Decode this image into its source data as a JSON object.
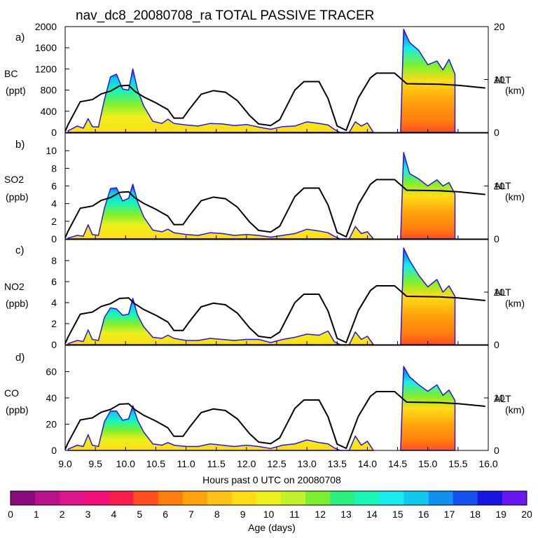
{
  "chart_data": {
    "type": "area",
    "title": "nav_dc8_20080708_ra TOTAL PASSIVE TRACER",
    "xlabel": "Hours past 0 UTC on 20080708",
    "xlim": [
      9.0,
      16.0
    ],
    "x_ticks": [
      "9.0",
      "9.5",
      "10.0",
      "10.5",
      "11.0",
      "11.5",
      "12.0",
      "12.5",
      "13.0",
      "13.5",
      "14.0",
      "14.5",
      "15.0",
      "15.5",
      "16.0"
    ],
    "right_axis": {
      "label": "ALT",
      "unit": "(km)",
      "ylim": [
        0,
        20
      ],
      "ticks": [
        "0",
        "10",
        "20"
      ]
    },
    "altitude_km": [
      [
        9.0,
        0.2
      ],
      [
        9.05,
        1.5
      ],
      [
        9.25,
        5.8
      ],
      [
        9.45,
        6.2
      ],
      [
        9.6,
        7.3
      ],
      [
        9.75,
        7.8
      ],
      [
        9.9,
        8.8
      ],
      [
        10.05,
        8.9
      ],
      [
        10.15,
        7.8
      ],
      [
        10.3,
        6.7
      ],
      [
        10.5,
        5.6
      ],
      [
        10.7,
        4.3
      ],
      [
        10.8,
        2.7
      ],
      [
        10.95,
        2.7
      ],
      [
        11.05,
        4.3
      ],
      [
        11.25,
        7.2
      ],
      [
        11.45,
        7.9
      ],
      [
        11.65,
        7.6
      ],
      [
        11.85,
        6.0
      ],
      [
        12.05,
        3.2
      ],
      [
        12.2,
        1.6
      ],
      [
        12.4,
        1.3
      ],
      [
        12.55,
        2.4
      ],
      [
        12.8,
        8.0
      ],
      [
        12.95,
        9.6
      ],
      [
        13.2,
        9.6
      ],
      [
        13.35,
        6.4
      ],
      [
        13.5,
        1.2
      ],
      [
        13.65,
        0.4
      ],
      [
        13.85,
        6.5
      ],
      [
        14.05,
        10.3
      ],
      [
        14.15,
        11.2
      ],
      [
        14.45,
        11.2
      ],
      [
        14.65,
        9.2
      ],
      [
        15.2,
        9.1
      ],
      [
        15.5,
        8.9
      ],
      [
        15.95,
        8.4
      ]
    ],
    "age_colorbar": {
      "label": "Age (days)",
      "ticks": [
        "0",
        "1",
        "2",
        "3",
        "4",
        "5",
        "6",
        "7",
        "8",
        "9",
        "10",
        "11",
        "12",
        "13",
        "14",
        "15",
        "16",
        "17",
        "18",
        "19",
        "20"
      ],
      "colors": [
        "#8b0a7e",
        "#b8128c",
        "#dc148e",
        "#f20f7c",
        "#fa1d4b",
        "#ff4d1f",
        "#ff7f0e",
        "#ffa20c",
        "#ffc116",
        "#ffdc16",
        "#ecf01c",
        "#c2f22c",
        "#7cf030",
        "#2cf080",
        "#1af5b8",
        "#18ecec",
        "#12c8f0",
        "#1090f0",
        "#1450f0",
        "#1616e0",
        "#6a16f0"
      ]
    },
    "panels": [
      {
        "id": "a)",
        "species": "BC",
        "unit": "(ppt)",
        "ylim": [
          0,
          2000
        ],
        "yticks": [
          "0",
          "400",
          "800",
          "1200",
          "1600",
          "2000"
        ],
        "ticks_at": [
          0,
          400,
          800,
          1200,
          1600,
          2000
        ],
        "total_tracer": [
          [
            9.05,
            30
          ],
          [
            9.2,
            120
          ],
          [
            9.3,
            80
          ],
          [
            9.38,
            260
          ],
          [
            9.45,
            110
          ],
          [
            9.55,
            100
          ],
          [
            9.65,
            620
          ],
          [
            9.75,
            1050
          ],
          [
            9.85,
            1100
          ],
          [
            9.95,
            820
          ],
          [
            10.05,
            800
          ],
          [
            10.12,
            1200
          ],
          [
            10.2,
            800
          ],
          [
            10.3,
            500
          ],
          [
            10.45,
            210
          ],
          [
            10.6,
            170
          ],
          [
            10.7,
            250
          ],
          [
            10.8,
            170
          ],
          [
            11.0,
            140
          ],
          [
            11.2,
            120
          ],
          [
            11.4,
            170
          ],
          [
            11.6,
            160
          ],
          [
            11.8,
            130
          ],
          [
            12.0,
            150
          ],
          [
            12.2,
            100
          ],
          [
            12.4,
            60
          ],
          [
            12.6,
            110
          ],
          [
            12.8,
            120
          ],
          [
            13.0,
            200
          ],
          [
            13.2,
            170
          ],
          [
            13.35,
            140
          ],
          [
            13.45,
            60
          ],
          [
            13.55,
            0
          ],
          [
            13.7,
            0
          ],
          [
            13.8,
            200
          ],
          [
            13.9,
            120
          ],
          [
            14.0,
            180
          ],
          [
            14.1,
            0
          ],
          [
            14.55,
            0
          ],
          [
            14.6,
            1950
          ],
          [
            14.7,
            1700
          ],
          [
            14.85,
            1550
          ],
          [
            15.0,
            1280
          ],
          [
            15.15,
            1350
          ],
          [
            15.25,
            1180
          ],
          [
            15.35,
            1380
          ],
          [
            15.45,
            1100
          ]
        ]
      },
      {
        "id": "b)",
        "species": "SO2",
        "unit": "(ppb)",
        "ylim": [
          0,
          12
        ],
        "yticks": [
          "0",
          "2",
          "4",
          "6",
          "8",
          "10"
        ],
        "ticks_at": [
          0,
          2,
          4,
          6,
          8,
          10
        ],
        "total_tracer": [
          [
            9.05,
            0.1
          ],
          [
            9.2,
            0.4
          ],
          [
            9.3,
            0.3
          ],
          [
            9.38,
            1.6
          ],
          [
            9.45,
            0.5
          ],
          [
            9.55,
            0.4
          ],
          [
            9.65,
            3.5
          ],
          [
            9.75,
            5.7
          ],
          [
            9.85,
            5.8
          ],
          [
            9.95,
            4.3
          ],
          [
            10.05,
            4.6
          ],
          [
            10.12,
            6.2
          ],
          [
            10.2,
            4.2
          ],
          [
            10.3,
            2.5
          ],
          [
            10.45,
            1.0
          ],
          [
            10.6,
            0.8
          ],
          [
            10.7,
            1.1
          ],
          [
            10.8,
            0.7
          ],
          [
            11.0,
            0.5
          ],
          [
            11.2,
            0.4
          ],
          [
            11.4,
            0.7
          ],
          [
            11.6,
            0.6
          ],
          [
            11.8,
            0.4
          ],
          [
            12.0,
            0.5
          ],
          [
            12.2,
            0.4
          ],
          [
            12.4,
            0.2
          ],
          [
            12.6,
            0.4
          ],
          [
            12.8,
            0.6
          ],
          [
            13.0,
            1.1
          ],
          [
            13.2,
            0.9
          ],
          [
            13.35,
            0.7
          ],
          [
            13.45,
            0.3
          ],
          [
            13.55,
            0
          ],
          [
            13.7,
            0
          ],
          [
            13.8,
            1.4
          ],
          [
            13.9,
            0.6
          ],
          [
            14.0,
            0.8
          ],
          [
            14.1,
            0
          ],
          [
            14.55,
            0
          ],
          [
            14.6,
            9.8
          ],
          [
            14.7,
            7.4
          ],
          [
            14.85,
            6.8
          ],
          [
            15.0,
            6.0
          ],
          [
            15.15,
            6.7
          ],
          [
            15.25,
            6.0
          ],
          [
            15.35,
            6.4
          ],
          [
            15.45,
            5.1
          ]
        ]
      },
      {
        "id": "c)",
        "species": "NO2",
        "unit": "(ppb)",
        "ylim": [
          0,
          10
        ],
        "yticks": [
          "0",
          "2",
          "4",
          "6",
          "8"
        ],
        "ticks_at": [
          0,
          2,
          4,
          6,
          8
        ],
        "total_tracer": [
          [
            9.05,
            0.1
          ],
          [
            9.2,
            0.4
          ],
          [
            9.3,
            0.3
          ],
          [
            9.38,
            1.4
          ],
          [
            9.45,
            0.5
          ],
          [
            9.55,
            0.4
          ],
          [
            9.65,
            2.6
          ],
          [
            9.75,
            3.5
          ],
          [
            9.85,
            3.4
          ],
          [
            9.95,
            2.8
          ],
          [
            10.05,
            2.9
          ],
          [
            10.12,
            4.4
          ],
          [
            10.2,
            2.8
          ],
          [
            10.3,
            1.7
          ],
          [
            10.45,
            0.7
          ],
          [
            10.6,
            0.6
          ],
          [
            10.7,
            0.9
          ],
          [
            10.8,
            0.6
          ],
          [
            11.0,
            0.4
          ],
          [
            11.2,
            0.4
          ],
          [
            11.4,
            0.6
          ],
          [
            11.6,
            0.5
          ],
          [
            11.8,
            0.4
          ],
          [
            12.0,
            0.5
          ],
          [
            12.2,
            0.5
          ],
          [
            12.4,
            0.2
          ],
          [
            12.6,
            0.5
          ],
          [
            12.8,
            0.7
          ],
          [
            13.0,
            1.0
          ],
          [
            13.2,
            0.9
          ],
          [
            13.35,
            1.3
          ],
          [
            13.45,
            0.3
          ],
          [
            13.55,
            0
          ],
          [
            13.7,
            0
          ],
          [
            13.8,
            1.2
          ],
          [
            13.9,
            0.5
          ],
          [
            14.0,
            0.8
          ],
          [
            14.1,
            0
          ],
          [
            14.55,
            0
          ],
          [
            14.6,
            9.2
          ],
          [
            14.7,
            8.0
          ],
          [
            14.85,
            6.6
          ],
          [
            15.0,
            5.5
          ],
          [
            15.15,
            6.2
          ],
          [
            15.25,
            5.0
          ],
          [
            15.35,
            5.6
          ],
          [
            15.45,
            4.6
          ]
        ]
      },
      {
        "id": "d)",
        "species": "CO",
        "unit": "(ppb)",
        "ylim": [
          0,
          80
        ],
        "yticks": [
          "0",
          "20",
          "40",
          "60"
        ],
        "ticks_at": [
          0,
          20,
          40,
          60
        ],
        "total_tracer": [
          [
            9.05,
            1
          ],
          [
            9.2,
            4
          ],
          [
            9.3,
            3
          ],
          [
            9.38,
            12
          ],
          [
            9.45,
            4
          ],
          [
            9.55,
            3
          ],
          [
            9.65,
            22
          ],
          [
            9.75,
            30
          ],
          [
            9.85,
            30
          ],
          [
            9.95,
            23
          ],
          [
            10.05,
            24
          ],
          [
            10.12,
            34
          ],
          [
            10.2,
            23
          ],
          [
            10.3,
            14
          ],
          [
            10.45,
            5
          ],
          [
            10.6,
            4
          ],
          [
            10.7,
            6
          ],
          [
            10.8,
            4
          ],
          [
            11.0,
            3
          ],
          [
            11.2,
            3
          ],
          [
            11.4,
            5
          ],
          [
            11.6,
            4
          ],
          [
            11.8,
            3
          ],
          [
            12.0,
            4
          ],
          [
            12.2,
            3
          ],
          [
            12.4,
            1.5
          ],
          [
            12.6,
            4
          ],
          [
            12.8,
            5
          ],
          [
            13.0,
            8
          ],
          [
            13.2,
            6
          ],
          [
            13.35,
            5
          ],
          [
            13.45,
            2
          ],
          [
            13.55,
            0
          ],
          [
            13.7,
            0
          ],
          [
            13.8,
            11
          ],
          [
            13.9,
            4
          ],
          [
            14.0,
            7
          ],
          [
            14.1,
            0
          ],
          [
            14.55,
            0
          ],
          [
            14.6,
            64
          ],
          [
            14.7,
            56
          ],
          [
            14.85,
            50
          ],
          [
            15.0,
            45
          ],
          [
            15.15,
            50
          ],
          [
            15.25,
            42
          ],
          [
            15.35,
            46
          ],
          [
            15.45,
            38
          ]
        ]
      }
    ]
  }
}
